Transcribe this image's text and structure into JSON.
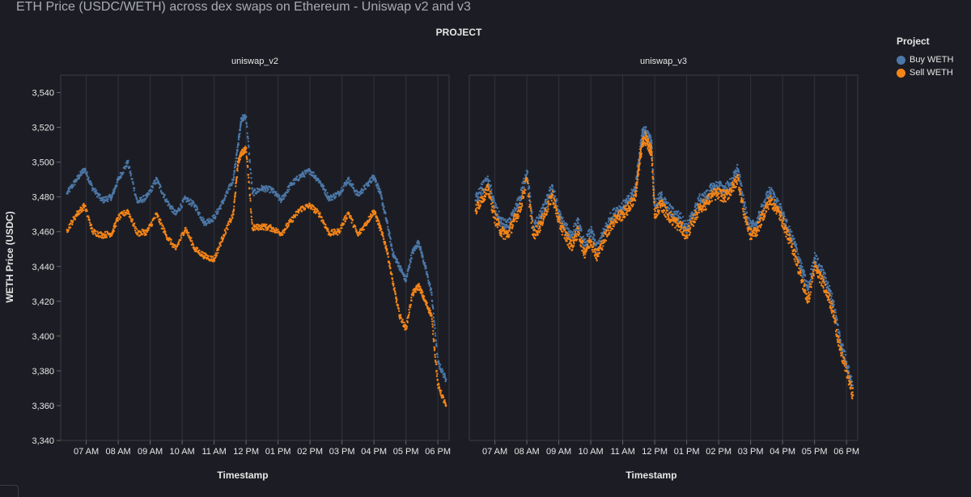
{
  "title": "ETH Price (USDC/WETH) across dex swaps on Ethereum - Uniswap v2 and v3",
  "legend": {
    "title": "Project",
    "items": [
      {
        "label": "Buy WETH",
        "color": "#4c78a8"
      },
      {
        "label": "Sell WETH",
        "color": "#f58518"
      }
    ]
  },
  "chart_data": {
    "type": "scatter",
    "facet_header": "PROJECT",
    "xlabel": "Timestamp",
    "ylabel": "WETH Price (USDC)",
    "ylim": [
      3340,
      3550
    ],
    "yticks": [
      3340,
      3360,
      3380,
      3400,
      3420,
      3440,
      3460,
      3480,
      3500,
      3520,
      3540
    ],
    "ytick_labels": [
      "3,340",
      "3,360",
      "3,380",
      "3,400",
      "3,420",
      "3,440",
      "3,460",
      "3,480",
      "3,500",
      "3,520",
      "3,540"
    ],
    "xlim_hours": [
      6.2,
      18.35
    ],
    "xticks_hours": [
      7,
      8,
      9,
      10,
      11,
      12,
      13,
      14,
      15,
      16,
      17,
      18
    ],
    "xtick_labels": [
      "07 AM",
      "08 AM",
      "09 AM",
      "10 AM",
      "11 AM",
      "12 PM",
      "01 PM",
      "02 PM",
      "03 PM",
      "04 PM",
      "05 PM",
      "06 PM"
    ],
    "panels": [
      {
        "name": "uniswap_v2",
        "series": [
          {
            "name": "Buy WETH",
            "x": [
              6.4,
              6.7,
              6.95,
              7.2,
              7.5,
              7.8,
              8.0,
              8.3,
              8.6,
              8.9,
              9.2,
              9.5,
              9.8,
              10.1,
              10.4,
              10.7,
              11.0,
              11.3,
              11.6,
              11.75,
              11.85,
              12.0,
              12.2,
              12.5,
              12.8,
              13.1,
              13.4,
              13.7,
              14.0,
              14.3,
              14.6,
              14.9,
              15.2,
              15.5,
              15.8,
              16.0,
              16.2,
              16.4,
              16.6,
              16.8,
              17.0,
              17.2,
              17.4,
              17.6,
              17.8,
              18.0,
              18.25
            ],
            "y": [
              3482,
              3490,
              3496,
              3485,
              3478,
              3480,
              3490,
              3500,
              3477,
              3480,
              3490,
              3478,
              3470,
              3479,
              3475,
              3465,
              3468,
              3478,
              3490,
              3510,
              3525,
              3526,
              3482,
              3485,
              3484,
              3478,
              3487,
              3492,
              3495,
              3489,
              3479,
              3482,
              3490,
              3481,
              3487,
              3492,
              3482,
              3466,
              3447,
              3440,
              3432,
              3448,
              3454,
              3440,
              3425,
              3385,
              3375
            ]
          },
          {
            "name": "Sell WETH",
            "x": [
              6.4,
              6.7,
              6.95,
              7.2,
              7.5,
              7.8,
              8.0,
              8.3,
              8.6,
              8.9,
              9.2,
              9.5,
              9.8,
              10.1,
              10.4,
              10.7,
              11.0,
              11.3,
              11.6,
              11.75,
              11.85,
              12.0,
              12.2,
              12.5,
              12.8,
              13.1,
              13.4,
              13.7,
              14.0,
              14.3,
              14.6,
              14.9,
              15.2,
              15.5,
              15.8,
              16.0,
              16.2,
              16.4,
              16.6,
              16.8,
              17.0,
              17.2,
              17.4,
              17.6,
              17.8,
              18.0,
              18.25
            ],
            "y": [
              3461,
              3470,
              3475,
              3460,
              3458,
              3459,
              3468,
              3472,
              3459,
              3460,
              3470,
              3458,
              3450,
              3462,
              3450,
              3446,
              3444,
              3458,
              3470,
              3500,
              3505,
              3508,
              3462,
              3463,
              3462,
              3459,
              3466,
              3473,
              3475,
              3470,
              3459,
              3460,
              3471,
              3458,
              3466,
              3472,
              3462,
              3450,
              3430,
              3412,
              3404,
              3424,
              3429,
              3420,
              3412,
              3372,
              3360
            ]
          }
        ]
      },
      {
        "name": "uniswap_v3",
        "series": [
          {
            "name": "Buy WETH",
            "x": [
              6.4,
              6.6,
              6.8,
              7.0,
              7.2,
              7.4,
              7.6,
              7.8,
              8.0,
              8.2,
              8.4,
              8.6,
              8.8,
              9.0,
              9.2,
              9.4,
              9.6,
              9.8,
              10.0,
              10.2,
              10.4,
              10.6,
              10.8,
              11.0,
              11.2,
              11.4,
              11.5,
              11.6,
              11.7,
              11.8,
              11.9,
              12.0,
              12.2,
              12.4,
              12.6,
              12.8,
              13.0,
              13.2,
              13.4,
              13.6,
              13.8,
              14.0,
              14.2,
              14.4,
              14.6,
              14.8,
              15.0,
              15.2,
              15.4,
              15.6,
              15.8,
              16.0,
              16.2,
              16.4,
              16.6,
              16.8,
              17.0,
              17.2,
              17.4,
              17.6,
              17.8,
              18.0,
              18.2
            ],
            "y": [
              3478,
              3485,
              3489,
              3474,
              3465,
              3463,
              3470,
              3480,
              3495,
              3462,
              3468,
              3476,
              3486,
              3470,
              3462,
              3458,
              3465,
              3452,
              3460,
              3450,
              3459,
              3467,
              3472,
              3474,
              3478,
              3485,
              3500,
              3515,
              3518,
              3514,
              3511,
              3475,
              3480,
              3474,
              3470,
              3468,
              3462,
              3470,
              3478,
              3480,
              3485,
              3486,
              3484,
              3488,
              3496,
              3475,
              3462,
              3465,
              3475,
              3483,
              3478,
              3470,
              3460,
              3452,
              3438,
              3427,
              3445,
              3438,
              3430,
              3418,
              3398,
              3385,
              3370
            ]
          },
          {
            "name": "Sell WETH",
            "x": [
              6.4,
              6.6,
              6.8,
              7.0,
              7.2,
              7.4,
              7.6,
              7.8,
              8.0,
              8.2,
              8.4,
              8.6,
              8.8,
              9.0,
              9.2,
              9.4,
              9.6,
              9.8,
              10.0,
              10.2,
              10.4,
              10.6,
              10.8,
              11.0,
              11.2,
              11.4,
              11.5,
              11.6,
              11.7,
              11.8,
              11.9,
              12.0,
              12.2,
              12.4,
              12.6,
              12.8,
              13.0,
              13.2,
              13.4,
              13.6,
              13.8,
              14.0,
              14.2,
              14.4,
              14.6,
              14.8,
              15.0,
              15.2,
              15.4,
              15.6,
              15.8,
              16.0,
              16.2,
              16.4,
              16.6,
              16.8,
              17.0,
              17.2,
              17.4,
              17.6,
              17.8,
              18.0,
              18.2
            ],
            "y": [
              3472,
              3480,
              3484,
              3468,
              3460,
              3458,
              3466,
              3474,
              3490,
              3458,
              3463,
              3472,
              3481,
              3466,
              3458,
              3452,
              3460,
              3448,
              3455,
              3446,
              3455,
              3463,
              3468,
              3470,
              3474,
              3481,
              3496,
              3510,
              3514,
              3510,
              3506,
              3470,
              3476,
              3470,
              3466,
              3463,
              3458,
              3466,
              3474,
              3476,
              3481,
              3482,
              3480,
              3484,
              3491,
              3470,
              3458,
              3461,
              3470,
              3478,
              3474,
              3466,
              3456,
              3446,
              3432,
              3420,
              3440,
              3433,
              3425,
              3412,
              3392,
              3380,
              3366
            ]
          }
        ]
      }
    ]
  }
}
